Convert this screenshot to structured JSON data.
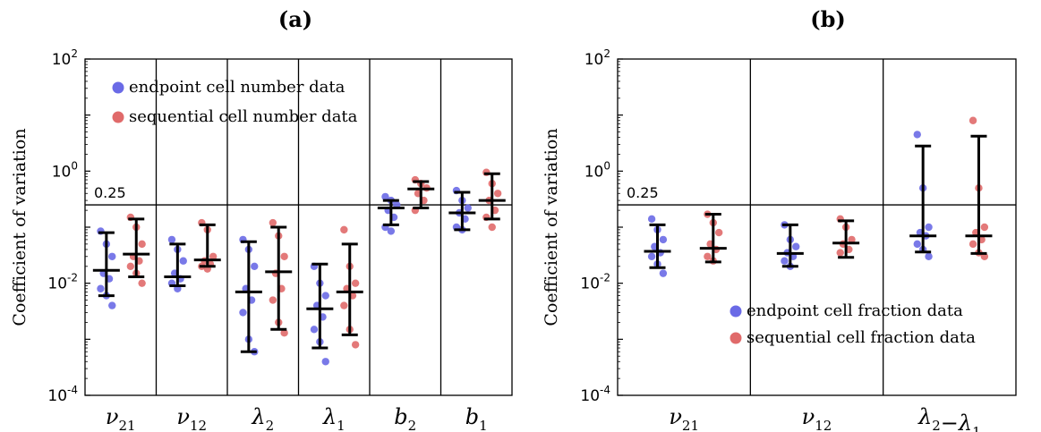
{
  "colors": {
    "endpoint": "#6a6ae6",
    "sequential": "#e06a6a",
    "axis": "#000000"
  },
  "chart_data": [
    {
      "panel_label": "(a)",
      "type": "scatter",
      "ylabel": "Coefficient of variation",
      "yscale": "log",
      "ylim": [
        0.0001,
        100
      ],
      "yticks": [
        "10^{-4}",
        "10^{-2}",
        "10^{0}",
        "10^{2}"
      ],
      "reference_line": {
        "value": 0.25,
        "label": "0.25"
      },
      "legend": {
        "position": "top-left",
        "entries": [
          "endpoint cell number data",
          "sequential cell number data"
        ]
      },
      "categories": [
        {
          "symbol": "ν",
          "sub": "21"
        },
        {
          "symbol": "ν",
          "sub": "12"
        },
        {
          "symbol": "λ",
          "sub": "2"
        },
        {
          "symbol": "λ",
          "sub": "1"
        },
        {
          "symbol": "b",
          "sub": "2"
        },
        {
          "symbol": "b",
          "sub": "1"
        }
      ],
      "series": [
        {
          "name": "endpoint cell number data",
          "points": [
            [
              0.085,
              0.05,
              0.03,
              0.015,
              0.012,
              0.008,
              0.006,
              0.004
            ],
            [
              0.06,
              0.04,
              0.025,
              0.015,
              0.012,
              0.01,
              0.008
            ],
            [
              0.06,
              0.04,
              0.02,
              0.008,
              0.005,
              0.003,
              0.001,
              0.0006
            ],
            [
              0.02,
              0.01,
              0.006,
              0.004,
              0.0025,
              0.0015,
              0.0009,
              0.0004
            ],
            [
              0.35,
              0.3,
              0.25,
              0.2,
              0.15,
              0.1,
              0.085
            ],
            [
              0.45,
              0.3,
              0.22,
              0.18,
              0.14,
              0.1,
              0.09
            ]
          ],
          "median": [
            0.017,
            0.013,
            0.007,
            0.0035,
            0.22,
            0.18
          ],
          "err_low": [
            0.006,
            0.009,
            0.0006,
            0.0007,
            0.11,
            0.09
          ],
          "err_high": [
            0.08,
            0.05,
            0.055,
            0.022,
            0.3,
            0.42
          ]
        },
        {
          "name": "sequential cell number data",
          "points": [
            [
              0.15,
              0.1,
              0.05,
              0.03,
              0.025,
              0.02,
              0.015,
              0.01
            ],
            [
              0.12,
              0.09,
              0.03,
              0.025,
              0.022,
              0.02,
              0.018
            ],
            [
              0.12,
              0.07,
              0.03,
              0.015,
              0.008,
              0.005,
              0.002,
              0.0013
            ],
            [
              0.09,
              0.02,
              0.01,
              0.008,
              0.006,
              0.004,
              0.0015,
              0.0008
            ],
            [
              0.7,
              0.6,
              0.5,
              0.4,
              0.3,
              0.2
            ],
            [
              0.95,
              0.6,
              0.4,
              0.3,
              0.2,
              0.15,
              0.1
            ]
          ],
          "median": [
            0.033,
            0.026,
            0.016,
            0.007,
            0.48,
            0.3
          ],
          "err_low": [
            0.013,
            0.02,
            0.0015,
            0.0012,
            0.22,
            0.14
          ],
          "err_high": [
            0.14,
            0.11,
            0.1,
            0.05,
            0.65,
            0.9
          ]
        }
      ]
    },
    {
      "panel_label": "(b)",
      "type": "scatter",
      "ylabel": "Coefficient of variation",
      "yscale": "log",
      "ylim": [
        0.0001,
        100
      ],
      "yticks": [
        "10^{-4}",
        "10^{-2}",
        "10^{0}",
        "10^{2}"
      ],
      "reference_line": {
        "value": 0.25,
        "label": "0.25"
      },
      "legend": {
        "position": "bottom-right",
        "entries": [
          "endpoint cell fraction data",
          "sequential cell fraction data"
        ]
      },
      "categories": [
        {
          "symbol": "ν",
          "sub": "21"
        },
        {
          "symbol": "ν",
          "sub": "12"
        },
        {
          "symbol": "λ",
          "sub": "2",
          "minus": {
            "symbol": "λ",
            "sub": "1"
          }
        }
      ],
      "series": [
        {
          "name": "endpoint cell fraction data",
          "points": [
            [
              0.14,
              0.09,
              0.06,
              0.045,
              0.035,
              0.03,
              0.022,
              0.015
            ],
            [
              0.11,
              0.06,
              0.045,
              0.035,
              0.03,
              0.025,
              0.02
            ],
            [
              4.5,
              0.5,
              0.1,
              0.08,
              0.07,
              0.05,
              0.04,
              0.03
            ]
          ],
          "median": [
            0.037,
            0.034,
            0.07
          ],
          "err_low": [
            0.019,
            0.02,
            0.036
          ],
          "err_high": [
            0.11,
            0.11,
            2.8
          ]
        },
        {
          "name": "sequential cell fraction data",
          "points": [
            [
              0.17,
              0.12,
              0.08,
              0.05,
              0.04,
              0.03,
              0.025
            ],
            [
              0.14,
              0.1,
              0.06,
              0.05,
              0.04,
              0.035
            ],
            [
              8.0,
              0.5,
              0.1,
              0.08,
              0.06,
              0.05,
              0.035,
              0.03
            ]
          ],
          "median": [
            0.042,
            0.052,
            0.07
          ],
          "err_low": [
            0.024,
            0.029,
            0.034
          ],
          "err_high": [
            0.17,
            0.13,
            4.2
          ]
        }
      ]
    }
  ]
}
